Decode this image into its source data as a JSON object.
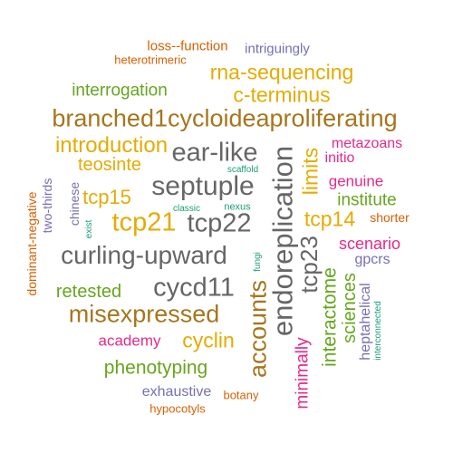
{
  "colors": {
    "orange": "#d95f02",
    "purple": "#7570b3",
    "gold": "#e6ab02",
    "green": "#66a61e",
    "brown": "#a6761d",
    "magenta": "#e7298a",
    "gray": "#666666",
    "teal": "#1b9e77"
  },
  "words": [
    {
      "text": "loss--function",
      "color": "orange"
    },
    {
      "text": "intriguingly",
      "color": "purple"
    },
    {
      "text": "heterotrimeric",
      "color": "orange"
    },
    {
      "text": "rna-sequencing",
      "color": "gold"
    },
    {
      "text": "interrogation",
      "color": "green"
    },
    {
      "text": "c-terminus",
      "color": "gold"
    },
    {
      "text": "branched1cycloideaproliferating",
      "color": "brown"
    },
    {
      "text": "introduction",
      "color": "gold"
    },
    {
      "text": "ear-like",
      "color": "gray"
    },
    {
      "text": "metazoans",
      "color": "magenta"
    },
    {
      "text": "initio",
      "color": "magenta"
    },
    {
      "text": "teosinte",
      "color": "gold"
    },
    {
      "text": "scaffold",
      "color": "teal"
    },
    {
      "text": "genuine",
      "color": "magenta"
    },
    {
      "text": "septuple",
      "color": "gray"
    },
    {
      "text": "tcp15",
      "color": "gold"
    },
    {
      "text": "institute",
      "color": "green"
    },
    {
      "text": "classic",
      "color": "teal"
    },
    {
      "text": "nexus",
      "color": "teal"
    },
    {
      "text": "tcp21",
      "color": "gold"
    },
    {
      "text": "tcp22",
      "color": "gray"
    },
    {
      "text": "tcp14",
      "color": "gold"
    },
    {
      "text": "shorter",
      "color": "orange"
    },
    {
      "text": "scenario",
      "color": "magenta"
    },
    {
      "text": "curling-upward",
      "color": "gray"
    },
    {
      "text": "gpcrs",
      "color": "purple"
    },
    {
      "text": "retested",
      "color": "green"
    },
    {
      "text": "cycd11",
      "color": "gray"
    },
    {
      "text": "misexpressed",
      "color": "brown"
    },
    {
      "text": "academy",
      "color": "magenta"
    },
    {
      "text": "cyclin",
      "color": "gold"
    },
    {
      "text": "phenotyping",
      "color": "green"
    },
    {
      "text": "exhaustive",
      "color": "purple"
    },
    {
      "text": "botany",
      "color": "orange"
    },
    {
      "text": "hypocotyls",
      "color": "orange"
    },
    {
      "text": "dominant-negative",
      "color": "orange"
    },
    {
      "text": "two-thirds",
      "color": "purple"
    },
    {
      "text": "chinese",
      "color": "purple"
    },
    {
      "text": "exist",
      "color": "teal"
    },
    {
      "text": "endoreplication",
      "color": "gray"
    },
    {
      "text": "tcp23",
      "color": "gray"
    },
    {
      "text": "limits",
      "color": "gold"
    },
    {
      "text": "accounts",
      "color": "brown"
    },
    {
      "text": "fungi",
      "color": "teal"
    },
    {
      "text": "minimally",
      "color": "magenta"
    },
    {
      "text": "interactome",
      "color": "green"
    },
    {
      "text": "sciences",
      "color": "green"
    },
    {
      "text": "heptahelical",
      "color": "purple"
    },
    {
      "text": "interconnected",
      "color": "teal"
    }
  ]
}
